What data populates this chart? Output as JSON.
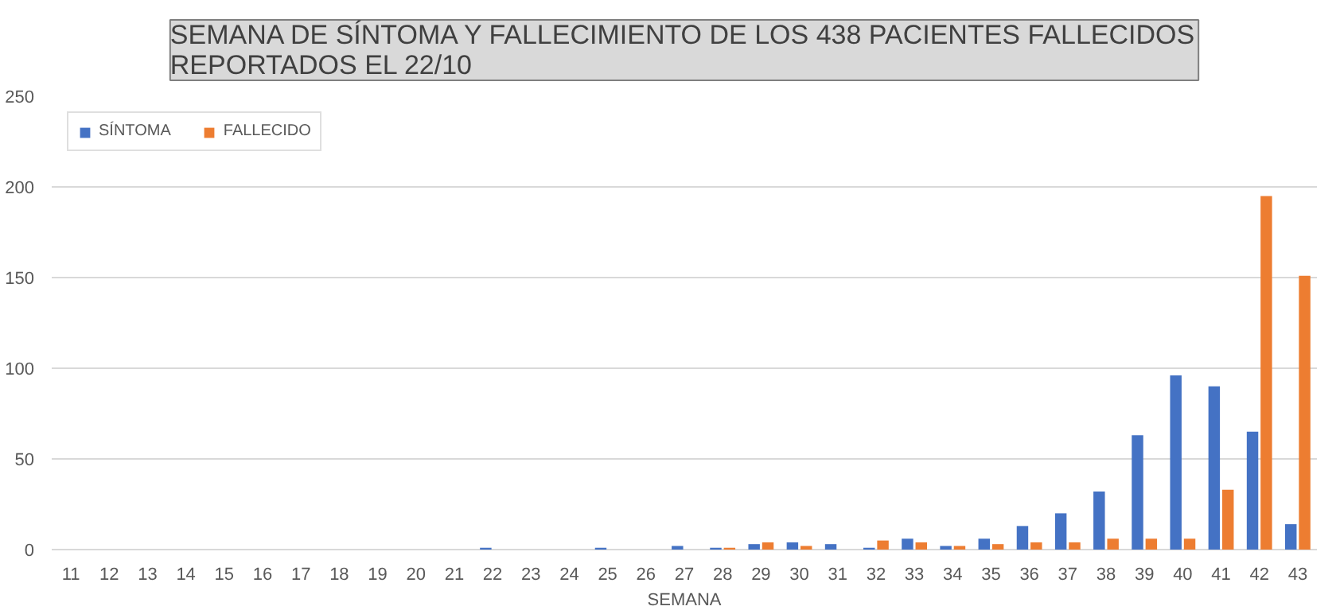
{
  "chart_data": {
    "type": "bar",
    "title": "SEMANA DE SÍNTOMA Y FALLECIMIENTO DE LOS 438 PACIENTES FALLECIDOS\nREPORTADOS EL 22/10",
    "xlabel": "SEMANA",
    "categories": [
      "11",
      "12",
      "13",
      "14",
      "15",
      "16",
      "17",
      "18",
      "19",
      "20",
      "21",
      "22",
      "23",
      "24",
      "25",
      "26",
      "27",
      "28",
      "29",
      "30",
      "31",
      "32",
      "33",
      "34",
      "35",
      "36",
      "37",
      "38",
      "39",
      "40",
      "41",
      "42",
      "43"
    ],
    "series": [
      {
        "name": "SÍNTOMA",
        "color": "#4472c4",
        "values": [
          0,
          0,
          0,
          0,
          0,
          0,
          0,
          0,
          0,
          0,
          0,
          1,
          0,
          0,
          1,
          0,
          2,
          1,
          3,
          4,
          3,
          1,
          6,
          2,
          6,
          13,
          20,
          32,
          63,
          96,
          90,
          65,
          14
        ]
      },
      {
        "name": "FALLECIDO",
        "color": "#ed7d31",
        "values": [
          0,
          0,
          0,
          0,
          0,
          0,
          0,
          0,
          0,
          0,
          0,
          0,
          0,
          0,
          0,
          0,
          0,
          1,
          4,
          2,
          0,
          5,
          4,
          2,
          3,
          4,
          4,
          6,
          6,
          6,
          33,
          195,
          151
        ]
      }
    ],
    "ylim": [
      0,
      250
    ],
    "yticks": [
      0,
      50,
      100,
      150,
      200,
      250
    ],
    "grid": "y",
    "legend": "top left"
  }
}
